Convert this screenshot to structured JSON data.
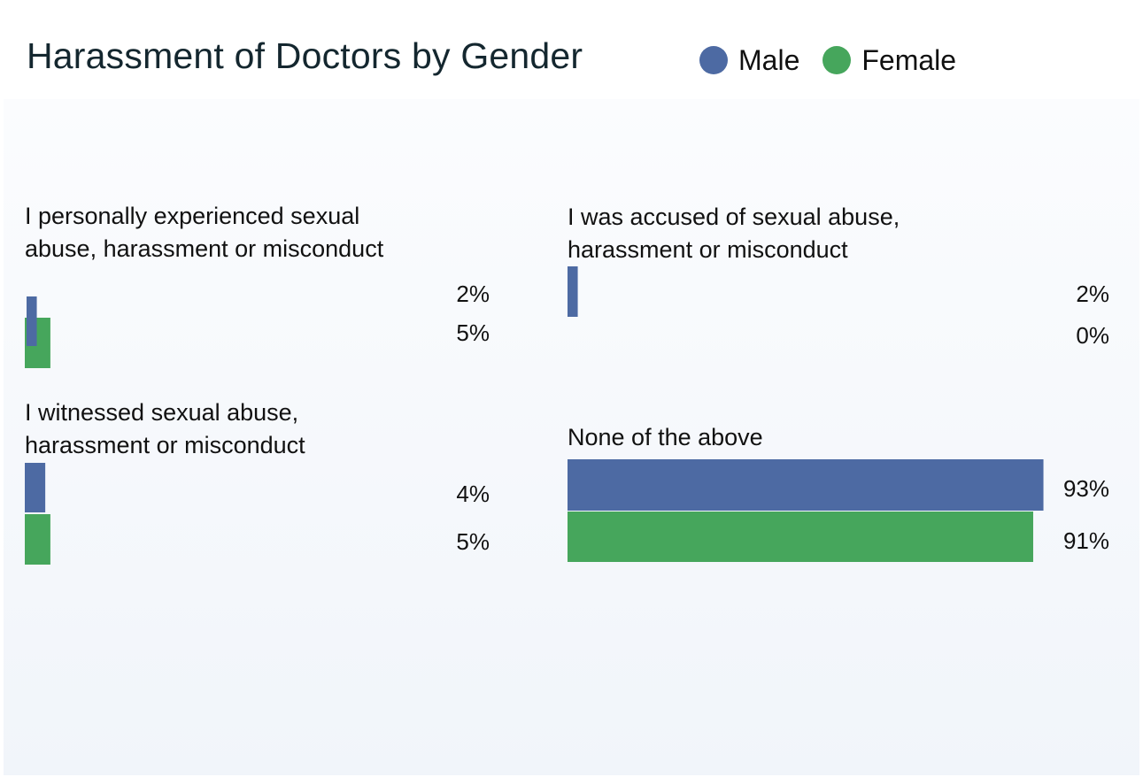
{
  "chart_data": {
    "type": "bar",
    "title": "Harassment of Doctors by Gender",
    "categories": [
      "I personally experienced sexual abuse, harassment or misconduct",
      "I was accused of sexual abuse, harassment or misconduct",
      "I witnessed sexual abuse, harassment or misconduct",
      "None of the above"
    ],
    "series": [
      {
        "name": "Male",
        "color": "#4d6aa3",
        "values": [
          2,
          2,
          4,
          93
        ],
        "labels": [
          "2%",
          "2%",
          "4%",
          "93%"
        ]
      },
      {
        "name": "Female",
        "color": "#46a65c",
        "values": [
          5,
          0,
          5,
          91
        ],
        "labels": [
          "5%",
          "0%",
          "5%",
          "91%"
        ]
      }
    ],
    "ylim": [
      0,
      100
    ],
    "unit": "%",
    "legend": "top-right",
    "grid": false
  },
  "panels": [
    {
      "title_lines": [
        "I personally experienced sexual",
        "abuse, harassment or misconduct"
      ]
    },
    {
      "title_lines": [
        "I was accused of sexual abuse,",
        "harassment or misconduct"
      ]
    },
    {
      "title_lines": [
        "I witnessed sexual abuse,",
        "harassment or misconduct"
      ]
    },
    {
      "title_lines": [
        "None of the above"
      ]
    }
  ]
}
